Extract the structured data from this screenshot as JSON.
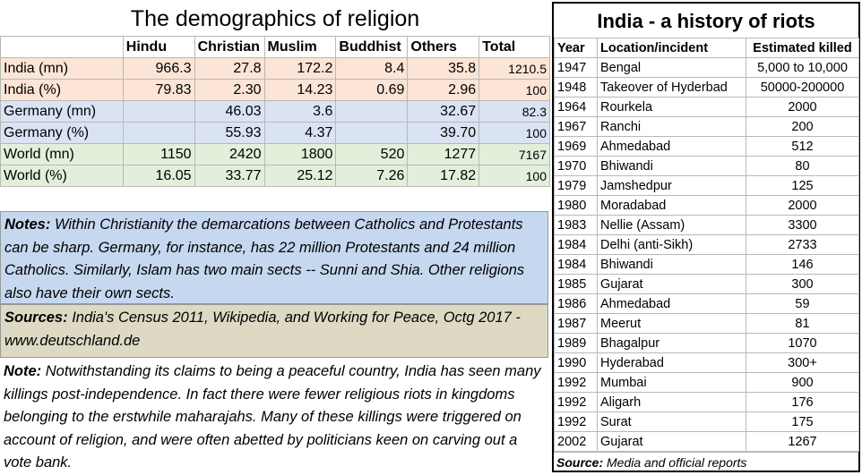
{
  "religion": {
    "title": "The demographics of religion",
    "columns": [
      "",
      "Hindu",
      "Christian",
      "Muslim",
      "Buddhist",
      "Others",
      "Total"
    ],
    "rows": [
      {
        "label": "India (mn)",
        "values": [
          "966.3",
          "27.8",
          "172.2",
          "8.4",
          "35.8",
          "1210.5"
        ],
        "color": "#fce4d6"
      },
      {
        "label": "India (%)",
        "values": [
          "79.83",
          "2.30",
          "14.23",
          "0.69",
          "2.96",
          "100"
        ],
        "color": "#fce4d6"
      },
      {
        "label": "Germany (mn)",
        "values": [
          "",
          "46.03",
          "3.6",
          "",
          "32.67",
          "82.3"
        ],
        "color": "#dae3f3"
      },
      {
        "label": "Germany (%)",
        "values": [
          "",
          "55.93",
          "4.37",
          "",
          "39.70",
          "100"
        ],
        "color": "#dae3f3"
      },
      {
        "label": "World (mn)",
        "values": [
          "1150",
          "2420",
          "1800",
          "520",
          "1277",
          "7167"
        ],
        "color": "#e2efda"
      },
      {
        "label": "World (%)",
        "values": [
          "16.05",
          "33.77",
          "25.12",
          "7.26",
          "17.82",
          "100"
        ],
        "color": "#e2efda"
      }
    ],
    "notes_label": "Notes:",
    "notes_text": "Within Christianity the demarcations between Catholics and Protestants can be sharp.  Germany, for instance, has 22 million Protestants and 24 million Catholics. Similarly, Islam has two main sects -- Sunni and Shia. Other religions also have their own sects.",
    "sources_label": "Sources:",
    "sources_text": "India's Census 2011, Wikipedia,  and Working for Peace, Octg 2017 - www.deutschland.de",
    "note2_label": "Note:",
    "note2_text": "Notwithstanding its claims to being a peaceful country, India has seen many killings post-independence. In fact there were fewer religious riots in kingdoms belonging to the erstwhile maharajahs.  Many of these killings were triggered on account of religion, and were often abetted by politicians keen on carving out a vote bank."
  },
  "riots": {
    "title": "India - a history of riots",
    "headers": [
      "Year",
      "Location/incident",
      "Estimated killed"
    ],
    "rows": [
      {
        "year": "1947",
        "location": "Bengal",
        "killed": "5,000 to 10,000"
      },
      {
        "year": "1948",
        "location": "Takeover of Hyderbad",
        "killed": "50000-200000"
      },
      {
        "year": "1964",
        "location": "Rourkela",
        "killed": "2000"
      },
      {
        "year": "1967",
        "location": "Ranchi",
        "killed": "200"
      },
      {
        "year": "1969",
        "location": "Ahmedabad",
        "killed": "512"
      },
      {
        "year": "1970",
        "location": "Bhiwandi",
        "killed": "80"
      },
      {
        "year": "1979",
        "location": "Jamshedpur",
        "killed": "125"
      },
      {
        "year": "1980",
        "location": "Moradabad",
        "killed": "2000"
      },
      {
        "year": "1983",
        "location": "Nellie (Assam)",
        "killed": "3300"
      },
      {
        "year": "1984",
        "location": "Delhi (anti-Sikh)",
        "killed": "2733"
      },
      {
        "year": "1984",
        "location": "Bhiwandi",
        "killed": "146"
      },
      {
        "year": "1985",
        "location": "Gujarat",
        "killed": "300"
      },
      {
        "year": "1986",
        "location": "Ahmedabad",
        "killed": "59"
      },
      {
        "year": "1987",
        "location": "Meerut",
        "killed": "81"
      },
      {
        "year": "1989",
        "location": "Bhagalpur",
        "killed": "1070"
      },
      {
        "year": "1990",
        "location": "Hyderabad",
        "killed": "300+"
      },
      {
        "year": "1992",
        "location": "Mumbai",
        "killed": "900"
      },
      {
        "year": "1992",
        "location": "Aligarh",
        "killed": "176"
      },
      {
        "year": "1992",
        "location": "Surat",
        "killed": "175"
      },
      {
        "year": "2002",
        "location": "Gujarat",
        "killed": "1267"
      }
    ],
    "source_label": "Source:",
    "source_text": "Media and official reports"
  }
}
